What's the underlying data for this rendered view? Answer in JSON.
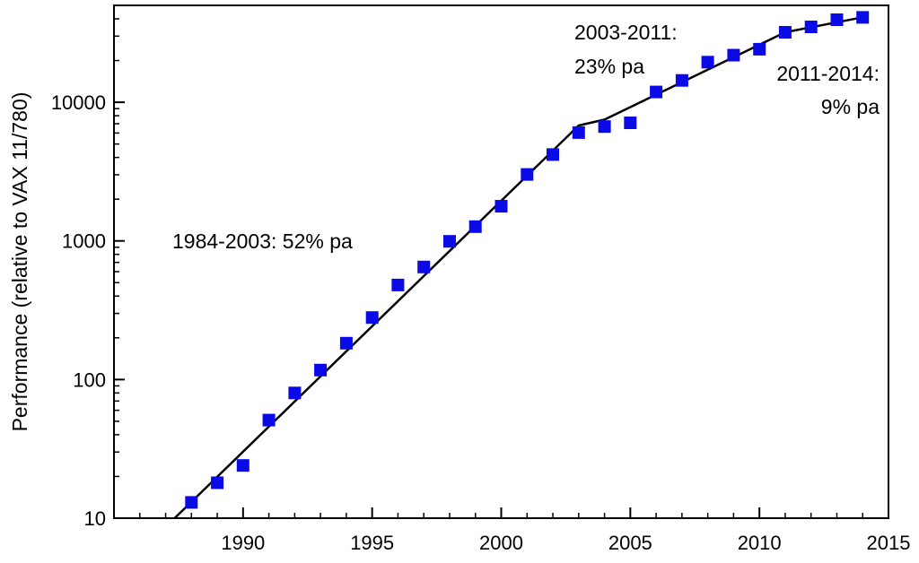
{
  "chart_data": {
    "type": "scatter",
    "title": "",
    "xlabel": "",
    "ylabel": "Performance (relative to VAX 11/780)",
    "yscale": "log",
    "xlim": [
      1985,
      2015
    ],
    "ylim": [
      10,
      50000
    ],
    "x_ticks": [
      1990,
      1995,
      2000,
      2005,
      2010,
      2015
    ],
    "y_ticks": [
      10,
      100,
      1000,
      10000
    ],
    "x_tick_labels": [
      "1990",
      "1995",
      "2000",
      "2005",
      "2010",
      "2015"
    ],
    "y_tick_labels": [
      "10",
      "100",
      "1000",
      "10000"
    ],
    "grid": false,
    "legend": "none",
    "marker_color": "#0a0ae6",
    "line_color": "#000000",
    "series": [
      {
        "type": "scatter",
        "x": [
          1988,
          1989,
          1990,
          1991,
          1992,
          1993,
          1994,
          1995,
          1996,
          1997,
          1998,
          1999,
          2000,
          2001,
          2002,
          2003,
          2004,
          2005,
          2006,
          2007,
          2008,
          2009,
          2010,
          2011,
          2012,
          2013,
          2014
        ],
        "y": [
          13,
          18,
          24,
          51,
          80,
          117,
          183,
          280,
          481,
          649,
          993,
          1267,
          1779,
          3016,
          4195,
          6043,
          6681,
          7108,
          11865,
          14387,
          19484,
          21871,
          24129,
          31999,
          34967,
          39419,
          40967
        ]
      },
      {
        "type": "line",
        "x": [
          1987.35,
          2003,
          2004,
          2011,
          2014
        ],
        "y": [
          10,
          6800,
          7500,
          32000,
          41000
        ]
      }
    ],
    "annotations": [
      "1984-2003: 52% pa",
      "2003-2011:",
      "23% pa",
      "2011-2014:",
      "9% pa"
    ]
  }
}
